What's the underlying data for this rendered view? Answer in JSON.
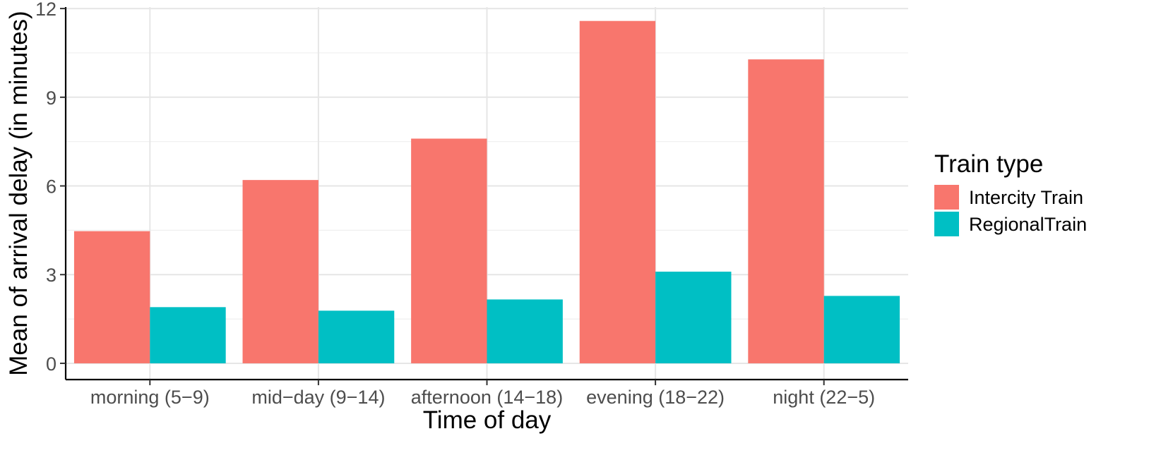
{
  "chart_data": {
    "type": "bar",
    "xlabel": "Time of day",
    "ylabel": "Mean of arrival delay (in minutes)",
    "categories": [
      "morning (5−9)",
      "mid−day (9−14)",
      "afternoon (14−18)",
      "evening (18−22)",
      "night (22−5)"
    ],
    "series": [
      {
        "name": "Intercity Train",
        "color": "#F8766D",
        "values": [
          4.47,
          6.2,
          7.6,
          11.58,
          10.28
        ]
      },
      {
        "name": "RegionalTrain",
        "color": "#00BFC4",
        "values": [
          1.9,
          1.78,
          2.16,
          3.1,
          2.28
        ]
      }
    ],
    "ylim": [
      -0.55,
      12.05
    ],
    "yticks": [
      0,
      3,
      6,
      9,
      12
    ],
    "grid": true,
    "legend": {
      "title": "Train type",
      "position": "right"
    }
  }
}
